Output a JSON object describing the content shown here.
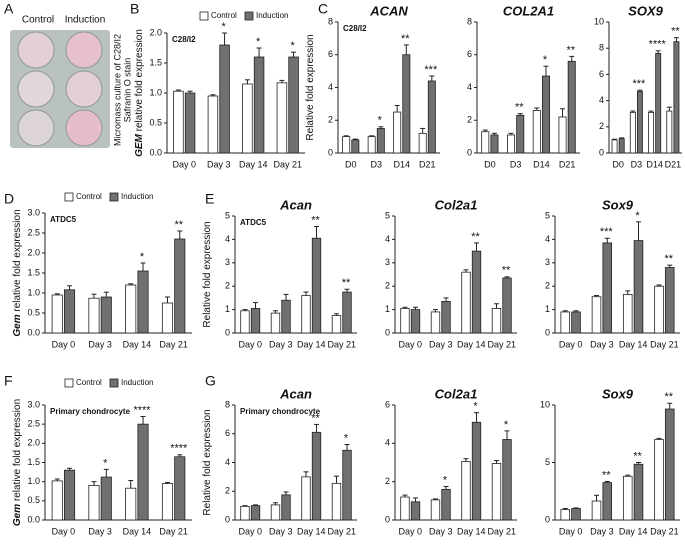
{
  "panel_a": {
    "panel": "A",
    "columns": [
      "Control",
      "Induction"
    ],
    "caption": [
      "Micromass culture of C28/I2",
      "Safranin O stain"
    ]
  },
  "chart_data": [
    {
      "type": "bar",
      "panel": "B",
      "subtitle": "C28/I2",
      "ylabel_gene": "GEM",
      "ylabel": "relative fold expression",
      "legend": true,
      "categories": [
        "Day 0",
        "Day 3",
        "Day 14",
        "Day 21"
      ],
      "series": [
        {
          "name": "Control",
          "color": "#ffffff",
          "values": [
            1.03,
            0.95,
            1.15,
            1.17
          ],
          "errors": [
            0.02,
            0.02,
            0.07,
            0.04
          ]
        },
        {
          "name": "Induction",
          "color": "#707070",
          "values": [
            1.0,
            1.8,
            1.6,
            1.6
          ],
          "errors": [
            0.03,
            0.2,
            0.15,
            0.08
          ]
        }
      ],
      "significance": [
        null,
        "*",
        "*",
        "*"
      ],
      "ylim": [
        0,
        2
      ],
      "yticks": [
        {
          "value": 0,
          "label": "0.0"
        },
        {
          "value": 0.5,
          "label": "0.5"
        },
        {
          "value": 1,
          "label": "1.0"
        },
        {
          "value": 1.5,
          "label": "1.5"
        },
        {
          "value": 2,
          "label": "2.0"
        }
      ]
    },
    {
      "type": "bar",
      "panel": "C",
      "title": "ACAN",
      "subtitle": "C28/I2",
      "ylabel": "Relative fold expression",
      "categories": [
        "D0",
        "D3",
        "D14",
        "D21"
      ],
      "series": [
        {
          "name": "Control",
          "color": "#ffffff",
          "values": [
            1.0,
            1.0,
            2.5,
            1.2
          ],
          "errors": [
            0.05,
            0.05,
            0.4,
            0.3
          ]
        },
        {
          "name": "Induction",
          "color": "#707070",
          "values": [
            0.8,
            1.5,
            6.0,
            4.4
          ],
          "errors": [
            0.05,
            0.1,
            0.6,
            0.3
          ]
        }
      ],
      "significance": [
        null,
        "*",
        "**",
        "***"
      ],
      "ylim": [
        0,
        8
      ],
      "yticks": [
        0,
        2,
        4,
        6,
        8
      ]
    },
    {
      "type": "bar",
      "title": "COL2A1",
      "categories": [
        "D0",
        "D3",
        "D14",
        "D21"
      ],
      "series": [
        {
          "name": "Control",
          "color": "#ffffff",
          "values": [
            1.3,
            1.1,
            2.6,
            2.2
          ],
          "errors": [
            0.1,
            0.1,
            0.15,
            0.5
          ]
        },
        {
          "name": "Induction",
          "color": "#707070",
          "values": [
            1.1,
            2.3,
            4.7,
            5.6
          ],
          "errors": [
            0.1,
            0.1,
            0.6,
            0.3
          ]
        }
      ],
      "significance": [
        null,
        "**",
        "*",
        "**"
      ],
      "ylim": [
        0,
        8
      ],
      "yticks": [
        0,
        2,
        4,
        6,
        8
      ]
    },
    {
      "type": "bar",
      "title": "SOX9",
      "categories": [
        "D0",
        "D3",
        "D14",
        "D21"
      ],
      "series": [
        {
          "name": "Control",
          "color": "#ffffff",
          "values": [
            1.0,
            3.1,
            3.1,
            3.2
          ],
          "errors": [
            0.05,
            0.1,
            0.1,
            0.3
          ]
        },
        {
          "name": "Induction",
          "color": "#707070",
          "values": [
            1.1,
            4.7,
            7.6,
            8.5
          ],
          "errors": [
            0.05,
            0.1,
            0.2,
            0.3
          ]
        }
      ],
      "significance": [
        null,
        "***",
        "****",
        "**"
      ],
      "ylim": [
        0,
        10
      ],
      "yticks": [
        0,
        2,
        4,
        6,
        8,
        10
      ]
    },
    {
      "type": "bar",
      "panel": "D",
      "subtitle": "ATDC5",
      "ylabel_gene": "Gem",
      "ylabel": "relative fold expression",
      "legend": true,
      "categories": [
        "Day 0",
        "Day 3",
        "Day 14",
        "Day 21"
      ],
      "series": [
        {
          "name": "Control",
          "color": "#ffffff",
          "values": [
            0.95,
            0.87,
            1.2,
            0.75
          ],
          "errors": [
            0.03,
            0.1,
            0.03,
            0.15
          ]
        },
        {
          "name": "Induction",
          "color": "#707070",
          "values": [
            1.08,
            0.9,
            1.55,
            2.35
          ],
          "errors": [
            0.1,
            0.12,
            0.2,
            0.2
          ]
        }
      ],
      "significance": [
        null,
        null,
        "*",
        "**"
      ],
      "ylim": [
        0,
        3
      ],
      "yticks": [
        {
          "value": 0,
          "label": "0.0"
        },
        {
          "value": 0.5,
          "label": "0.5"
        },
        {
          "value": 1,
          "label": "1.0"
        },
        {
          "value": 1.5,
          "label": "1.5"
        },
        {
          "value": 2,
          "label": "2.0"
        },
        {
          "value": 2.5,
          "label": "2.5"
        },
        {
          "value": 3,
          "label": "3.0"
        }
      ]
    },
    {
      "type": "bar",
      "panel": "E",
      "title": "Acan",
      "subtitle": "ATDC5",
      "ylabel": "Relative fold expression",
      "categories": [
        "Day 0",
        "Day 3",
        "Day 14",
        "Day 21"
      ],
      "series": [
        {
          "name": "Control",
          "color": "#ffffff",
          "values": [
            0.95,
            0.85,
            1.6,
            0.75
          ],
          "errors": [
            0.05,
            0.1,
            0.15,
            0.07
          ]
        },
        {
          "name": "Induction",
          "color": "#707070",
          "values": [
            1.05,
            1.4,
            4.05,
            1.75
          ],
          "errors": [
            0.25,
            0.25,
            0.5,
            0.12
          ]
        }
      ],
      "significance": [
        null,
        null,
        "**",
        "**"
      ],
      "ylim": [
        0,
        5
      ],
      "yticks": [
        0,
        1,
        2,
        3,
        4,
        5
      ]
    },
    {
      "type": "bar",
      "title": "Col2a1",
      "categories": [
        "Day 0",
        "Day 3",
        "Day 14",
        "Day 21"
      ],
      "series": [
        {
          "name": "Control",
          "color": "#ffffff",
          "values": [
            1.05,
            0.9,
            2.6,
            1.05
          ],
          "errors": [
            0.05,
            0.1,
            0.1,
            0.2
          ]
        },
        {
          "name": "Induction",
          "color": "#707070",
          "values": [
            1.0,
            1.35,
            3.5,
            2.35
          ],
          "errors": [
            0.1,
            0.15,
            0.35,
            0.05
          ]
        }
      ],
      "significance": [
        null,
        null,
        "**",
        "**"
      ],
      "ylim": [
        0,
        5
      ],
      "yticks": [
        0,
        1,
        2,
        3,
        4,
        5
      ]
    },
    {
      "type": "bar",
      "title": "Sox9",
      "categories": [
        "Day 0",
        "Day 3",
        "Day 14",
        "Day 21"
      ],
      "series": [
        {
          "name": "Control",
          "color": "#ffffff",
          "values": [
            0.9,
            1.55,
            1.65,
            2.0
          ],
          "errors": [
            0.05,
            0.05,
            0.15,
            0.05
          ]
        },
        {
          "name": "Induction",
          "color": "#707070",
          "values": [
            0.9,
            3.85,
            3.95,
            2.8
          ],
          "errors": [
            0.05,
            0.2,
            0.8,
            0.1
          ]
        }
      ],
      "significance": [
        null,
        "***",
        "*",
        "**"
      ],
      "ylim": [
        0,
        5
      ],
      "yticks": [
        0,
        1,
        2,
        3,
        4,
        5
      ]
    },
    {
      "type": "bar",
      "panel": "F",
      "subtitle": "Primary chondrocyte",
      "ylabel_gene": "Gem",
      "ylabel": "relative fold expression",
      "legend": true,
      "categories": [
        "Day 0",
        "Day 3",
        "Day 14",
        "Day 21"
      ],
      "series": [
        {
          "name": "Control",
          "color": "#ffffff",
          "values": [
            1.02,
            0.9,
            0.83,
            0.95
          ],
          "errors": [
            0.05,
            0.1,
            0.2,
            0.03
          ]
        },
        {
          "name": "Induction",
          "color": "#707070",
          "values": [
            1.3,
            1.12,
            2.5,
            1.65
          ],
          "errors": [
            0.05,
            0.2,
            0.2,
            0.05
          ]
        }
      ],
      "significance": [
        null,
        "*",
        "****",
        "****"
      ],
      "ylim": [
        0,
        3
      ],
      "yticks": [
        {
          "value": 0,
          "label": "0.0"
        },
        {
          "value": 0.5,
          "label": "0.5"
        },
        {
          "value": 1,
          "label": "1.0"
        },
        {
          "value": 1.5,
          "label": "1.5"
        },
        {
          "value": 2,
          "label": "2.0"
        },
        {
          "value": 2.5,
          "label": "2.5"
        },
        {
          "value": 3,
          "label": "3.0"
        }
      ]
    },
    {
      "type": "bar",
      "panel": "G",
      "title": "Acan",
      "subtitle": "Primary chondrocyte",
      "ylabel": "Relative fold expression",
      "categories": [
        "Day 0",
        "Day 3",
        "Day 14",
        "Day 21"
      ],
      "series": [
        {
          "name": "Control",
          "color": "#ffffff",
          "values": [
            0.95,
            1.05,
            3.0,
            2.55
          ],
          "errors": [
            0.05,
            0.15,
            0.35,
            0.5
          ]
        },
        {
          "name": "Induction",
          "color": "#707070",
          "values": [
            1.0,
            1.75,
            6.1,
            4.85
          ],
          "errors": [
            0.05,
            0.2,
            0.55,
            0.4
          ]
        }
      ],
      "significance": [
        null,
        null,
        "**",
        "*"
      ],
      "ylim": [
        0,
        8
      ],
      "yticks": [
        0,
        2,
        4,
        6,
        8
      ]
    },
    {
      "type": "bar",
      "title": "Col2a1",
      "categories": [
        "Day 0",
        "Day 3",
        "Day 14",
        "Day 21"
      ],
      "series": [
        {
          "name": "Control",
          "color": "#ffffff",
          "values": [
            1.2,
            1.05,
            3.05,
            2.95
          ],
          "errors": [
            0.1,
            0.05,
            0.15,
            0.15
          ]
        },
        {
          "name": "Induction",
          "color": "#707070",
          "values": [
            0.95,
            1.6,
            5.1,
            4.2
          ],
          "errors": [
            0.2,
            0.15,
            0.5,
            0.45
          ]
        }
      ],
      "significance": [
        null,
        "*",
        "*",
        "*"
      ],
      "ylim": [
        0,
        6
      ],
      "yticks": [
        0,
        2,
        4,
        6
      ]
    },
    {
      "type": "bar",
      "title": "Sox9",
      "categories": [
        "Day 0",
        "Day 3",
        "Day 14",
        "Day 21"
      ],
      "series": [
        {
          "name": "Control",
          "color": "#ffffff",
          "values": [
            0.9,
            1.65,
            3.8,
            7.0
          ],
          "errors": [
            0.1,
            0.5,
            0.1,
            0.1
          ]
        },
        {
          "name": "Induction",
          "color": "#707070",
          "values": [
            1.0,
            3.25,
            4.85,
            9.65
          ],
          "errors": [
            0.05,
            0.1,
            0.15,
            0.5
          ]
        }
      ],
      "significance": [
        null,
        "**",
        "**",
        "**"
      ],
      "ylim": [
        0,
        10
      ],
      "yticks": [
        0,
        5,
        10
      ]
    }
  ]
}
